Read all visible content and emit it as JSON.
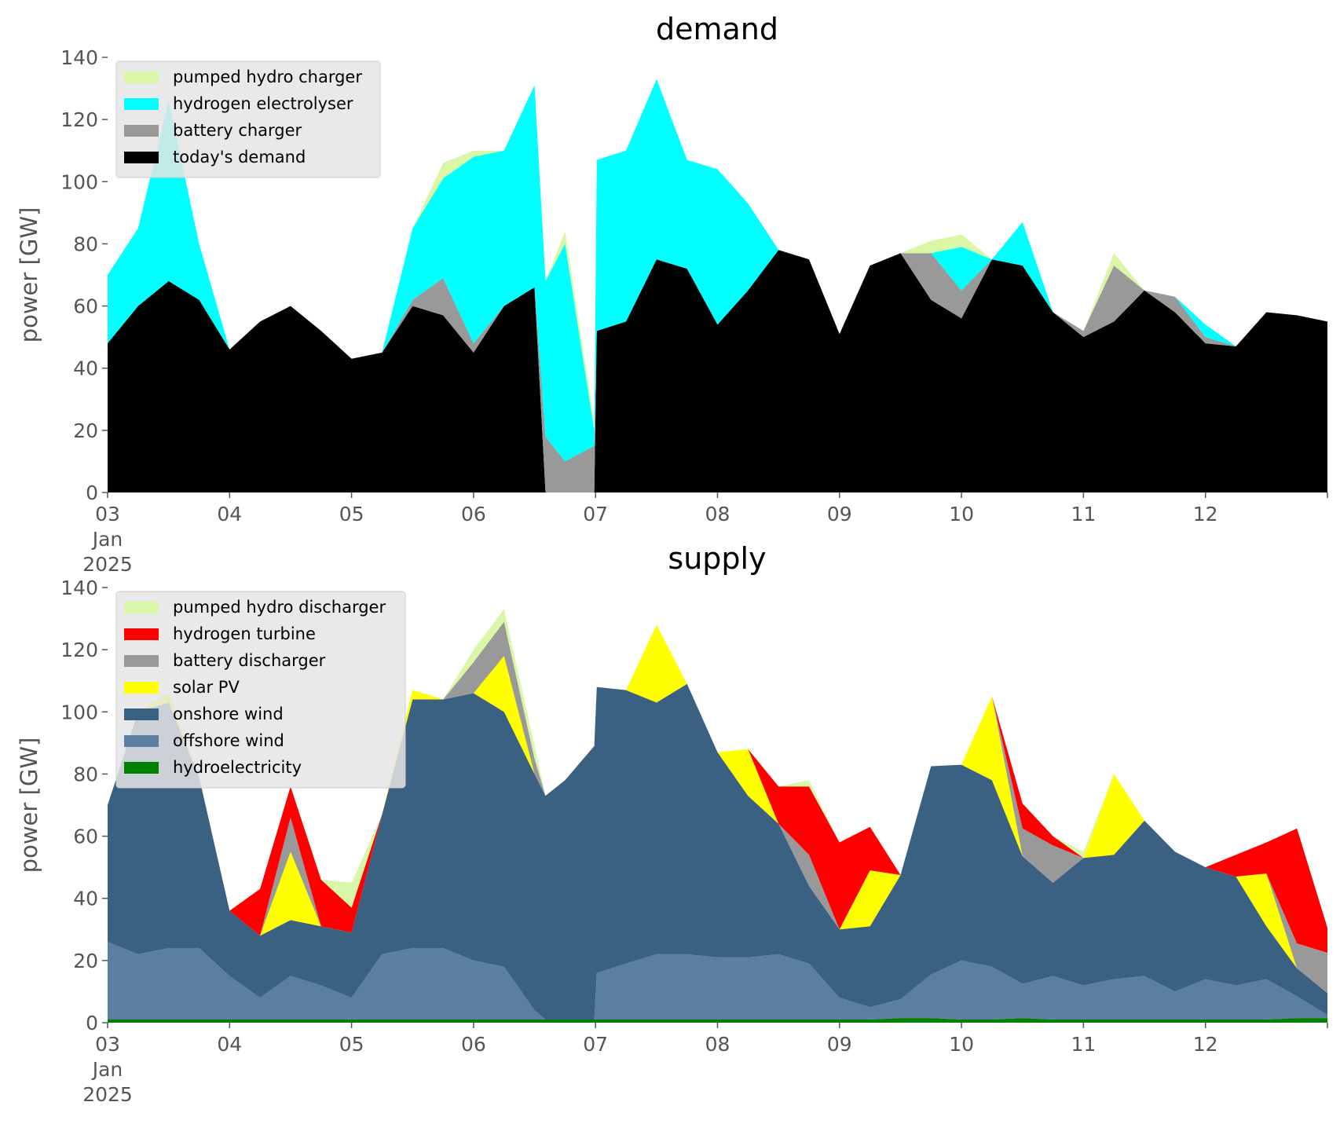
{
  "chart_data": [
    {
      "type": "area",
      "stacked": true,
      "title": "demand",
      "xlabel": "",
      "ylabel": "power [GW]",
      "ylim": [
        0,
        140
      ],
      "yticks": [
        "0",
        "20",
        "40",
        "60",
        "80",
        "100",
        "120",
        "140"
      ],
      "xlim_days": [
        0,
        10
      ],
      "xticks": [
        {
          "day": 0,
          "label": "03",
          "sub": [
            "Jan",
            "2025"
          ]
        },
        {
          "day": 1,
          "label": "04"
        },
        {
          "day": 2,
          "label": "05"
        },
        {
          "day": 3,
          "label": "06"
        },
        {
          "day": 4,
          "label": "07"
        },
        {
          "day": 5,
          "label": "08"
        },
        {
          "day": 6,
          "label": "09"
        },
        {
          "day": 7,
          "label": "10"
        },
        {
          "day": 8,
          "label": "11"
        },
        {
          "day": 9,
          "label": "12"
        }
      ],
      "grid": false,
      "legend_position": "upper-left",
      "legend": [
        {
          "name": "pumped hydro charger",
          "color": "#d9f7a6"
        },
        {
          "name": "hydrogen electrolyser",
          "color": "#00ffff"
        },
        {
          "name": "battery charger",
          "color": "#999999"
        },
        {
          "name": "today's demand",
          "color": "#000000"
        }
      ],
      "x": [
        0,
        0.25,
        0.5,
        0.75,
        1,
        1.25,
        1.5,
        1.75,
        2,
        2.25,
        2.5,
        2.75,
        3,
        3.25,
        3.5,
        3.59,
        3.75,
        3.99,
        4.01,
        4.25,
        4.5,
        4.75,
        5,
        5.25,
        5.5,
        5.75,
        6,
        6.25,
        6.5,
        6.75,
        7,
        7.25,
        7.5,
        7.75,
        8,
        8.25,
        8.5,
        8.75,
        9,
        9.25,
        9.5,
        9.75,
        10
      ],
      "series": [
        {
          "name": "today's demand",
          "color": "#000000",
          "values": [
            48,
            60,
            68,
            62,
            46,
            55,
            60,
            52,
            43,
            45,
            60,
            57,
            45,
            60,
            66,
            0,
            0,
            0,
            52,
            55,
            75,
            72,
            54,
            65,
            78,
            75,
            51,
            73,
            77,
            62,
            56,
            75,
            73,
            58,
            50,
            55,
            65,
            58,
            48,
            47,
            58,
            57,
            55
          ]
        },
        {
          "name": "battery charger",
          "color": "#999999",
          "values": [
            0,
            0,
            0,
            0,
            0,
            0,
            0,
            0,
            0,
            0,
            2,
            12,
            3,
            0,
            0,
            18,
            10,
            15,
            0,
            0,
            0,
            0,
            0,
            0,
            0,
            0,
            0,
            0,
            0,
            15,
            9,
            0,
            0,
            0,
            2,
            18,
            0,
            5,
            2,
            0,
            0,
            0,
            0
          ]
        },
        {
          "name": "hydrogen electrolyser",
          "color": "#00ffff",
          "values": [
            22,
            25,
            58,
            18,
            0,
            0,
            0,
            0,
            0,
            0,
            23,
            32,
            60,
            50,
            65,
            50,
            70,
            5,
            55,
            55,
            58,
            35,
            50,
            28,
            0,
            0,
            0,
            0,
            0,
            0,
            14,
            0,
            14,
            0,
            0,
            0,
            0,
            0,
            4,
            0,
            0,
            0,
            0
          ]
        },
        {
          "name": "pumped hydro charger",
          "color": "#d9f7a6",
          "values": [
            0,
            0,
            0,
            0,
            0,
            0,
            0,
            0,
            0,
            0,
            0,
            5,
            2,
            0,
            0,
            0,
            4,
            3,
            0,
            0,
            0,
            0,
            0,
            0,
            0,
            0,
            0,
            0,
            0,
            4,
            4,
            0,
            0,
            0,
            0,
            4,
            0,
            0,
            0,
            0,
            0,
            0,
            0
          ]
        }
      ]
    },
    {
      "type": "area",
      "stacked": true,
      "title": "supply",
      "xlabel": "",
      "ylabel": "power [GW]",
      "ylim": [
        0,
        140
      ],
      "yticks": [
        "0",
        "20",
        "40",
        "60",
        "80",
        "100",
        "120",
        "140"
      ],
      "xlim_days": [
        0,
        10
      ],
      "xticks": [
        {
          "day": 0,
          "label": "03",
          "sub": [
            "Jan",
            "2025"
          ]
        },
        {
          "day": 1,
          "label": "04"
        },
        {
          "day": 2,
          "label": "05"
        },
        {
          "day": 3,
          "label": "06"
        },
        {
          "day": 4,
          "label": "07"
        },
        {
          "day": 5,
          "label": "08"
        },
        {
          "day": 6,
          "label": "09"
        },
        {
          "day": 7,
          "label": "10"
        },
        {
          "day": 8,
          "label": "11"
        },
        {
          "day": 9,
          "label": "12"
        }
      ],
      "grid": false,
      "legend_position": "upper-left",
      "legend": [
        {
          "name": "pumped hydro discharger",
          "color": "#d9f7a6"
        },
        {
          "name": "hydrogen turbine",
          "color": "#ff0000"
        },
        {
          "name": "battery discharger",
          "color": "#999999"
        },
        {
          "name": "solar PV",
          "color": "#ffff00"
        },
        {
          "name": "onshore wind",
          "color": "#3b6182"
        },
        {
          "name": "offshore wind",
          "color": "#5b7fa1"
        },
        {
          "name": "hydroelectricity",
          "color": "#008000"
        }
      ],
      "x": [
        0,
        0.25,
        0.5,
        0.75,
        1,
        1.25,
        1.5,
        1.75,
        2,
        2.25,
        2.5,
        2.75,
        3,
        3.25,
        3.5,
        3.59,
        3.75,
        3.99,
        4.01,
        4.25,
        4.5,
        4.75,
        5,
        5.25,
        5.5,
        5.75,
        6,
        6.25,
        6.5,
        6.75,
        7,
        7.25,
        7.5,
        7.75,
        8,
        8.25,
        8.5,
        8.75,
        9,
        9.25,
        9.5,
        9.75,
        10
      ],
      "series": [
        {
          "name": "hydroelectricity",
          "color": "#008000",
          "values": [
            1,
            1,
            1,
            1,
            1,
            1,
            1,
            1,
            1,
            1,
            1,
            1,
            1,
            1,
            1,
            1,
            1,
            1,
            1,
            1,
            1,
            1,
            1,
            1,
            1,
            1,
            1,
            1,
            1.5,
            1.5,
            1,
            1,
            1.5,
            1,
            1,
            1,
            1,
            1,
            1,
            1,
            1,
            1.5,
            1.5
          ]
        },
        {
          "name": "offshore wind",
          "color": "#5b7fa1",
          "values": [
            25,
            21,
            23,
            23,
            14,
            7,
            14,
            11,
            7,
            21,
            23,
            23,
            19,
            17,
            3,
            0,
            0,
            0,
            15,
            18,
            21,
            21,
            20,
            20,
            21,
            18,
            7,
            4,
            6,
            14,
            19,
            17,
            11,
            14,
            11,
            13,
            14,
            9,
            13,
            11,
            13,
            7,
            1
          ]
        },
        {
          "name": "onshore wind",
          "color": "#3b6182",
          "values": [
            44,
            78,
            79,
            55,
            21,
            20,
            18,
            19,
            21,
            45,
            80,
            80,
            86,
            82,
            76,
            72,
            77,
            88,
            92,
            88,
            81,
            87,
            66,
            52,
            42,
            25,
            22,
            26,
            40,
            67,
            63,
            60,
            41,
            30,
            41,
            40,
            50,
            45,
            36,
            35,
            17,
            9,
            7
          ]
        },
        {
          "name": "solar PV",
          "color": "#ffff00",
          "values": [
            0,
            0,
            3,
            0,
            0,
            0,
            22,
            0,
            0,
            0,
            3,
            0,
            0,
            18,
            0,
            0,
            0,
            0,
            0,
            0,
            25,
            0,
            0,
            15,
            0,
            0,
            0,
            18,
            0,
            0,
            0,
            27,
            0,
            0,
            0,
            26,
            0,
            0,
            0,
            0,
            17,
            0,
            0
          ]
        },
        {
          "name": "battery discharger",
          "color": "#999999",
          "values": [
            0,
            0,
            0,
            0,
            0,
            0,
            11,
            0,
            0,
            0,
            0,
            0,
            10,
            11,
            5,
            0,
            0,
            0,
            0,
            0,
            0,
            0,
            0,
            0,
            0,
            10,
            0,
            0,
            0,
            0,
            0,
            0,
            9,
            12,
            0,
            0,
            0,
            0,
            0,
            0,
            0,
            8,
            13
          ]
        },
        {
          "name": "hydrogen turbine",
          "color": "#ff0000",
          "values": [
            0,
            0,
            0,
            0,
            0,
            15,
            10,
            15,
            8,
            0,
            0,
            0,
            0,
            0,
            0,
            0,
            0,
            0,
            0,
            0,
            0,
            0,
            0,
            0,
            12,
            22,
            28,
            14,
            0,
            0,
            0,
            0,
            8,
            3,
            0,
            0,
            0,
            0,
            0,
            7,
            10,
            37,
            8
          ]
        },
        {
          "name": "pumped hydro discharger",
          "color": "#d9f7a6",
          "values": [
            0,
            0,
            0,
            0,
            0,
            0,
            0,
            0,
            8,
            0,
            0,
            0,
            4,
            4,
            4,
            0,
            0,
            0,
            0,
            0,
            0,
            0,
            0,
            0,
            0,
            2,
            0,
            0,
            0,
            0,
            0,
            0,
            0,
            0,
            2,
            0,
            0,
            0,
            0,
            0,
            0,
            0,
            0
          ]
        }
      ]
    }
  ]
}
